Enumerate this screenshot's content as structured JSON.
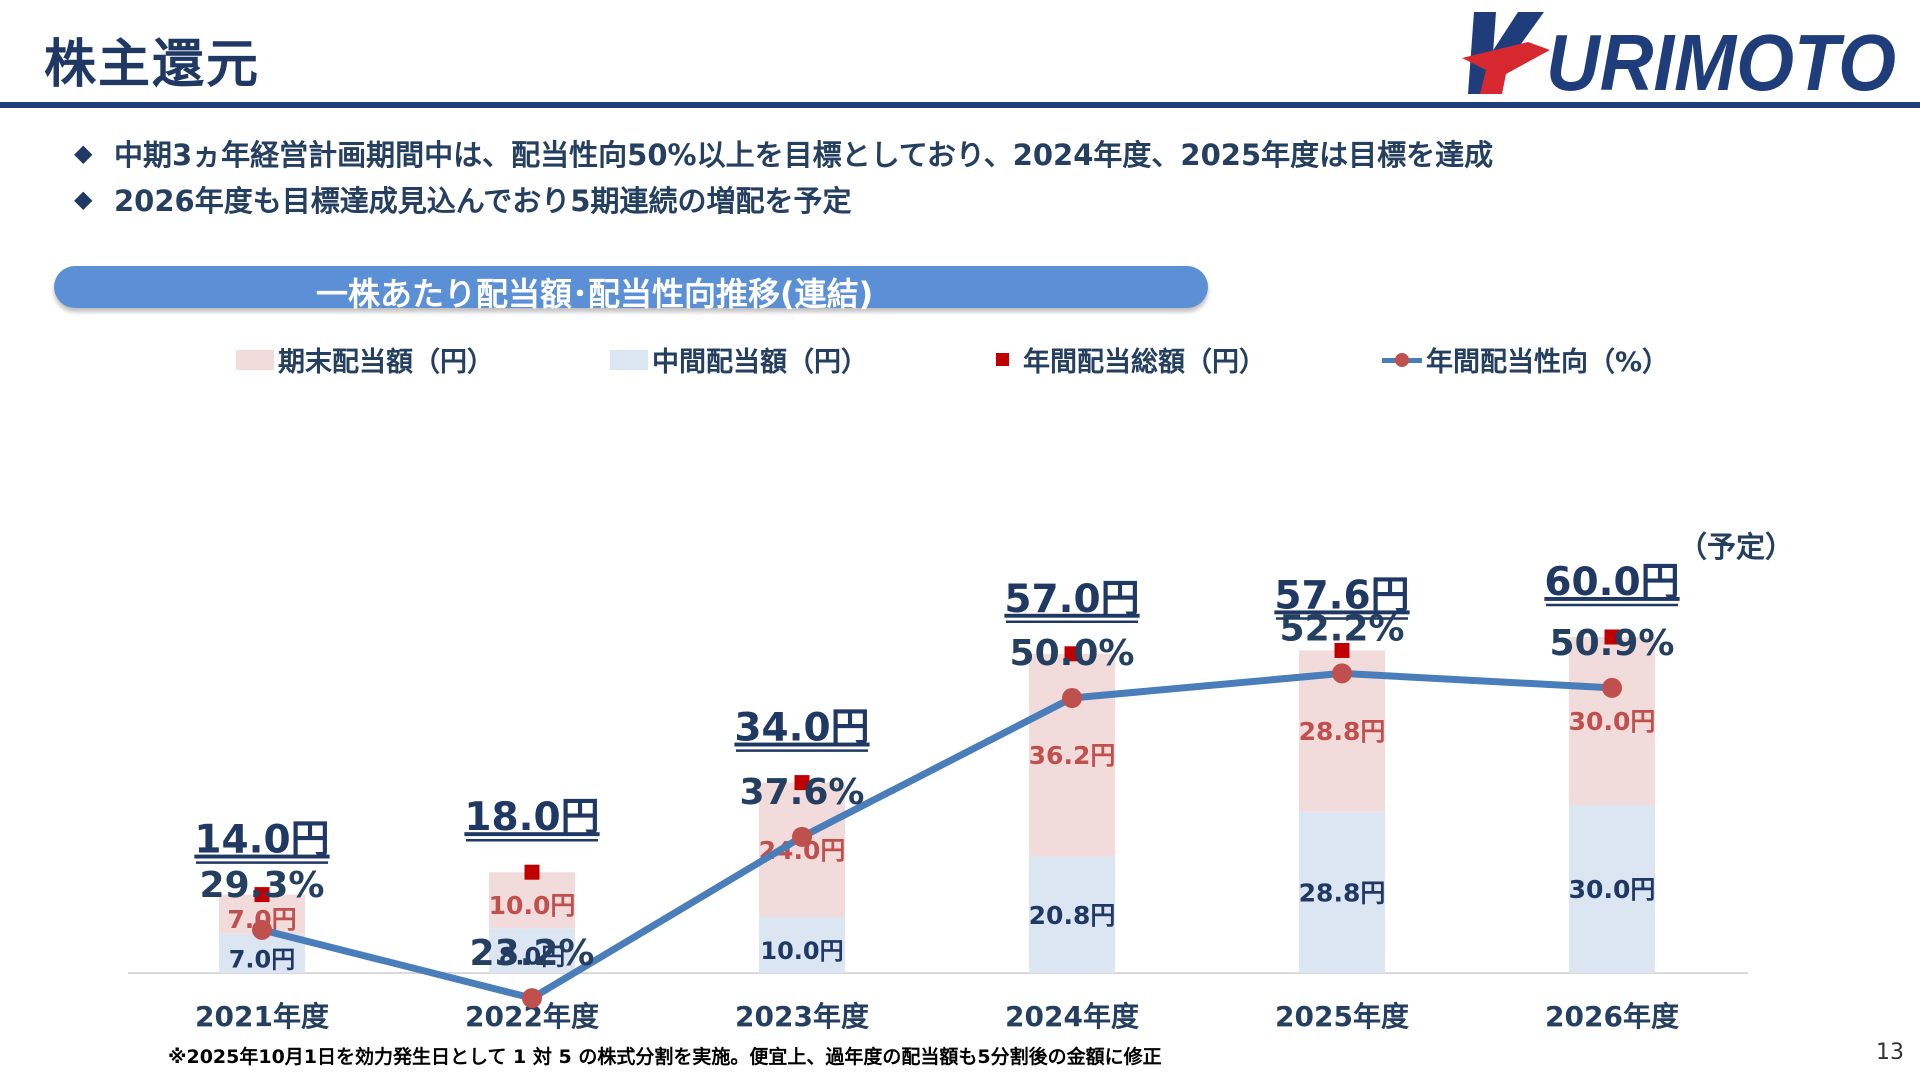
{
  "header": {
    "title": "株主還元",
    "logo_text": "KURIMOTO"
  },
  "bullets": [
    "中期3ヵ年経営計画期間中は、配当性向50%以上を目標としており、2024年度、2025年度は目標を達成",
    "2026年度も目標達成見込んでおり5期連続の増配を予定"
  ],
  "bullet_icon": "diamond-icon",
  "chart_banner": "一株あたり配当額･配当性向推移(連結)",
  "legend": {
    "term_end": "期末配当額（円）",
    "interim": "中間配当額（円）",
    "annual_total": "年間配当総額（円）",
    "payout_ratio": "年間配当性向（%）"
  },
  "chart_data": {
    "type": "bar",
    "stacked": true,
    "categories": [
      "2021年度",
      "2022年度",
      "2023年度",
      "2024年度",
      "2025年度",
      "2026年度"
    ],
    "series": [
      {
        "name": "中間配当額（円）",
        "values": [
          7.0,
          8.0,
          10.0,
          20.8,
          28.8,
          30.0
        ],
        "labels": [
          "7.0円",
          "8.0円",
          "10.0円",
          "20.8円",
          "28.8円",
          "30.0円"
        ],
        "color": "#dce6f2"
      },
      {
        "name": "期末配当額（円）",
        "values": [
          7.0,
          10.0,
          24.0,
          36.2,
          28.8,
          30.0
        ],
        "labels": [
          "7.0円",
          "10.0円",
          "24.0円",
          "36.2円",
          "28.8円",
          "30.0円"
        ],
        "color": "#f2dcdb"
      }
    ],
    "annual_total": {
      "name": "年間配当総額（円）",
      "values": [
        14.0,
        18.0,
        34.0,
        57.0,
        57.6,
        60.0
      ],
      "labels": [
        "14.0円",
        "18.0円",
        "34.0円",
        "57.0円",
        "57.6円",
        "60.0円"
      ],
      "marker_color": "#c00000"
    },
    "payout_ratio": {
      "name": "年間配当性向（%）",
      "type": "line",
      "values": [
        29.3,
        23.2,
        37.6,
        50.0,
        52.2,
        50.9
      ],
      "labels": [
        "29.3%",
        "23.2%",
        "37.6%",
        "50.0%",
        "52.2%",
        "50.9%"
      ],
      "line_color": "#4a7ebb",
      "marker_color": "#c0504d"
    },
    "forecast_note": "（予定）",
    "grid": false,
    "legend_position": "top"
  },
  "footnote": "※2025年10月1日を効力発生日として 1 対 5 の株式分割を実施。便宜上、過年度の配当額も5分割後の金額に修正",
  "page_number": "13",
  "colors": {
    "navy": "#1f3864",
    "accent_blue": "#5b8fd6",
    "red": "#c00000"
  }
}
